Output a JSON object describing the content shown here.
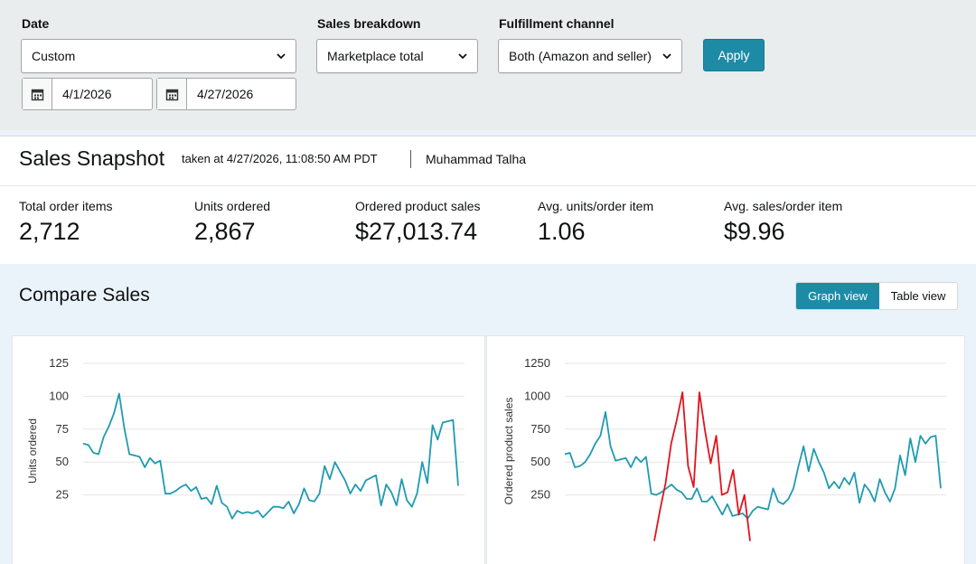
{
  "filters": {
    "date": {
      "label": "Date",
      "value": "Custom",
      "start": "4/1/2026",
      "end": "4/27/2026"
    },
    "breakdown": {
      "label": "Sales breakdown",
      "value": "Marketplace total"
    },
    "fulfillment": {
      "label": "Fulfillment channel",
      "value": "Both (Amazon and seller)"
    },
    "apply_label": "Apply"
  },
  "snapshot": {
    "title": "Sales Snapshot",
    "taken": "taken at 4/27/2026, 11:08:50 AM PDT",
    "user": "Muhammad Talha",
    "metrics": [
      {
        "label": "Total order items",
        "value": "2,712"
      },
      {
        "label": "Units ordered",
        "value": "2,867"
      },
      {
        "label": "Ordered product sales",
        "value": "$27,013.74"
      },
      {
        "label": "Avg. units/order item",
        "value": "1.06"
      },
      {
        "label": "Avg. sales/order item",
        "value": "$9.96"
      }
    ]
  },
  "compare": {
    "title": "Compare Sales",
    "graph_view": "Graph view",
    "table_view": "Table view"
  },
  "colors": {
    "accent": "#1d8ba6",
    "series_current": "#1f9bb0",
    "series_compare": "#e0141e"
  },
  "chart_data": [
    {
      "type": "line",
      "ylabel": "Units ordered",
      "yticks": [
        25,
        50,
        75,
        100,
        125
      ],
      "ylim": [
        0,
        125
      ],
      "series": [
        {
          "values": [
            64,
            63,
            57,
            56,
            69,
            77,
            87,
            102,
            76,
            56,
            55,
            54,
            46,
            53,
            49,
            51,
            26,
            26,
            28,
            31,
            33,
            28,
            31,
            22,
            23,
            18,
            32,
            19,
            16,
            7,
            13,
            11,
            12,
            11,
            13,
            8,
            12,
            16,
            16,
            15,
            20,
            11,
            18,
            30,
            21,
            20,
            26,
            47,
            37,
            50,
            43,
            36,
            26,
            33,
            28,
            36,
            38,
            40,
            17,
            33,
            27,
            17,
            37,
            21,
            16,
            26,
            50,
            34,
            78,
            67,
            80,
            81,
            82,
            32
          ]
        }
      ]
    },
    {
      "type": "line",
      "ylabel": "Ordered product sales",
      "yticks": [
        250,
        500,
        750,
        1000,
        1250
      ],
      "ylim": [
        0,
        1250
      ],
      "series": [
        {
          "values": [
            560,
            570,
            460,
            470,
            500,
            560,
            640,
            700,
            880,
            620,
            510,
            520,
            530,
            460,
            540,
            500,
            540,
            260,
            250,
            270,
            300,
            330,
            290,
            270,
            220,
            220,
            300,
            200,
            200,
            240,
            170,
            100,
            180,
            90,
            100,
            110,
            70,
            130,
            160,
            150,
            140,
            300,
            200,
            180,
            220,
            300,
            470,
            620,
            430,
            600,
            500,
            420,
            300,
            350,
            300,
            380,
            330,
            420,
            190,
            330,
            280,
            200,
            370,
            270,
            200,
            300,
            550,
            400,
            680,
            500,
            700,
            640,
            690,
            700,
            300
          ]
        },
        {
          "values": [
            -100,
            130,
            340,
            640,
            820,
            1030,
            470,
            310,
            1030,
            740,
            490,
            700,
            250,
            270,
            440,
            100,
            250,
            -100
          ]
        }
      ]
    }
  ]
}
